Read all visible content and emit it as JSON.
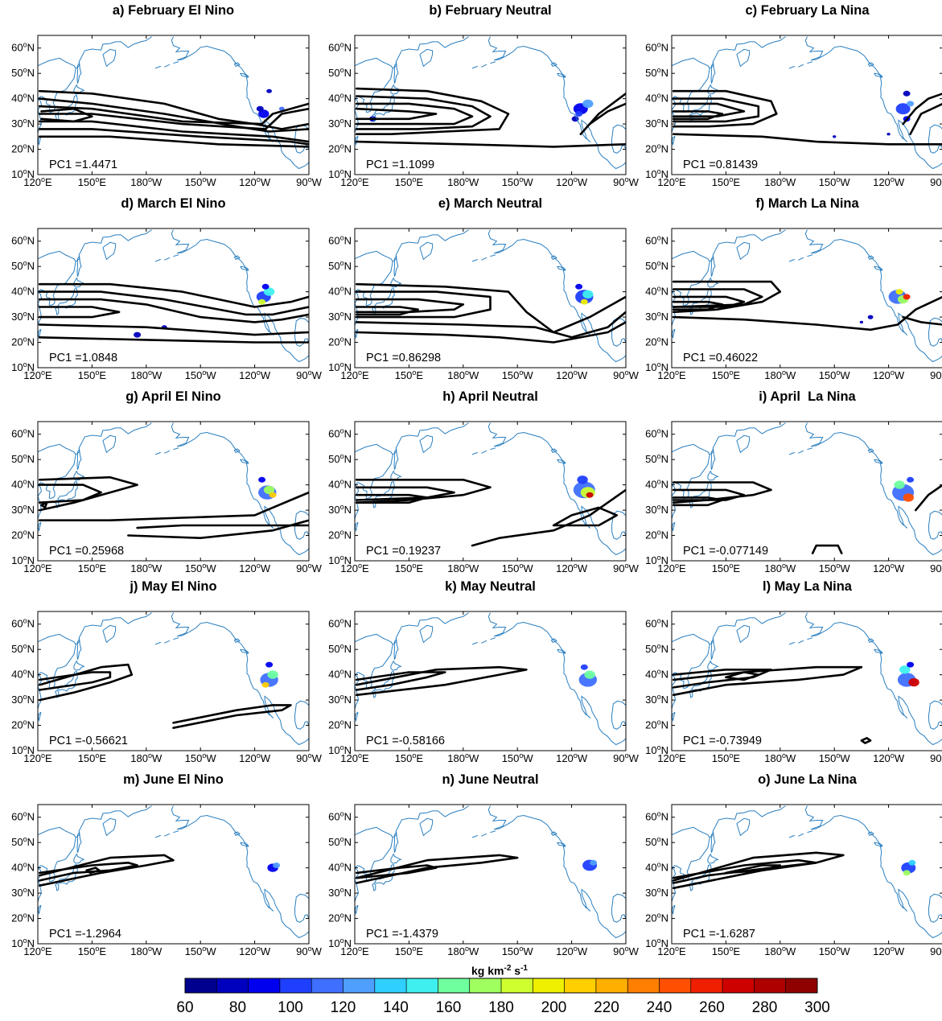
{
  "panels": [
    {
      "title": "a) February El Nino",
      "pc1": "PC1 =1.4471"
    },
    {
      "title": "b) February Neutral",
      "pc1": "PC1 =1.1099"
    },
    {
      "title": "c) February La Nina",
      "pc1": "PC1 =0.81439"
    },
    {
      "title": "d) March El Nino",
      "pc1": "PC1 =1.0848"
    },
    {
      "title": "e) March Neutral",
      "pc1": "PC1 =0.86298"
    },
    {
      "title": "f) March La Nina",
      "pc1": "PC1 =0.46022"
    },
    {
      "title": "g) April El Nino",
      "pc1": "PC1 =0.25968"
    },
    {
      "title": "h) April Neutral",
      "pc1": "PC1 =0.19237"
    },
    {
      "title": "i) April  La Nina",
      "pc1": "PC1 =-0.077149"
    },
    {
      "title": "j) May El Nino",
      "pc1": "PC1 =-0.56621"
    },
    {
      "title": "k) May Neutral",
      "pc1": "PC1 =-0.58166"
    },
    {
      "title": "l) May La Nina",
      "pc1": "PC1 =-0.73949"
    },
    {
      "title": "m) June El Nino",
      "pc1": "PC1 =-1.2964"
    },
    {
      "title": "n) June Neutral",
      "pc1": "PC1 =-1.4379"
    },
    {
      "title": "o) June La Nina",
      "pc1": "PC1 =-1.6287"
    }
  ],
  "map_axes": {
    "lon_ticks": [
      {
        "num": "120",
        "sup": "o",
        "hem": "E"
      },
      {
        "num": "150",
        "sup": "o",
        "hem": "E"
      },
      {
        "num": "180",
        "sup": "o",
        "hem": "W"
      },
      {
        "num": "150",
        "sup": "o",
        "hem": "W"
      },
      {
        "num": "120",
        "sup": "o",
        "hem": "W"
      },
      {
        "num": "90",
        "sup": "o",
        "hem": "W"
      }
    ],
    "lat_ticks": [
      {
        "num": "60",
        "sup": "o",
        "hem": "N"
      },
      {
        "num": "50",
        "sup": "o",
        "hem": "N"
      },
      {
        "num": "40",
        "sup": "o",
        "hem": "N"
      },
      {
        "num": "30",
        "sup": "o",
        "hem": "N"
      },
      {
        "num": "20",
        "sup": "o",
        "hem": "N"
      },
      {
        "num": "10",
        "sup": "o",
        "hem": "N"
      }
    ]
  },
  "colorbar": {
    "title_main": "kg km",
    "title_exp1": "-2",
    "title_mid": " s",
    "title_exp2": "-1",
    "tick_labels": [
      "60",
      "80",
      "100",
      "120",
      "140",
      "160",
      "180",
      "200",
      "220",
      "240",
      "260",
      "280",
      "300"
    ],
    "colors": [
      "#00008f",
      "#0000bf",
      "#0000ef",
      "#1f3fff",
      "#3f6fff",
      "#4f9fff",
      "#2fcfff",
      "#3fefef",
      "#6fff9f",
      "#9fff5f",
      "#cfff2f",
      "#efef00",
      "#ffcf00",
      "#ffaf00",
      "#ff7f00",
      "#ff4f00",
      "#ef1f00",
      "#cf0000",
      "#af0000",
      "#8f0000"
    ]
  },
  "colors": {
    "coastline": "#2a7fc0",
    "contour": "#000000"
  }
}
